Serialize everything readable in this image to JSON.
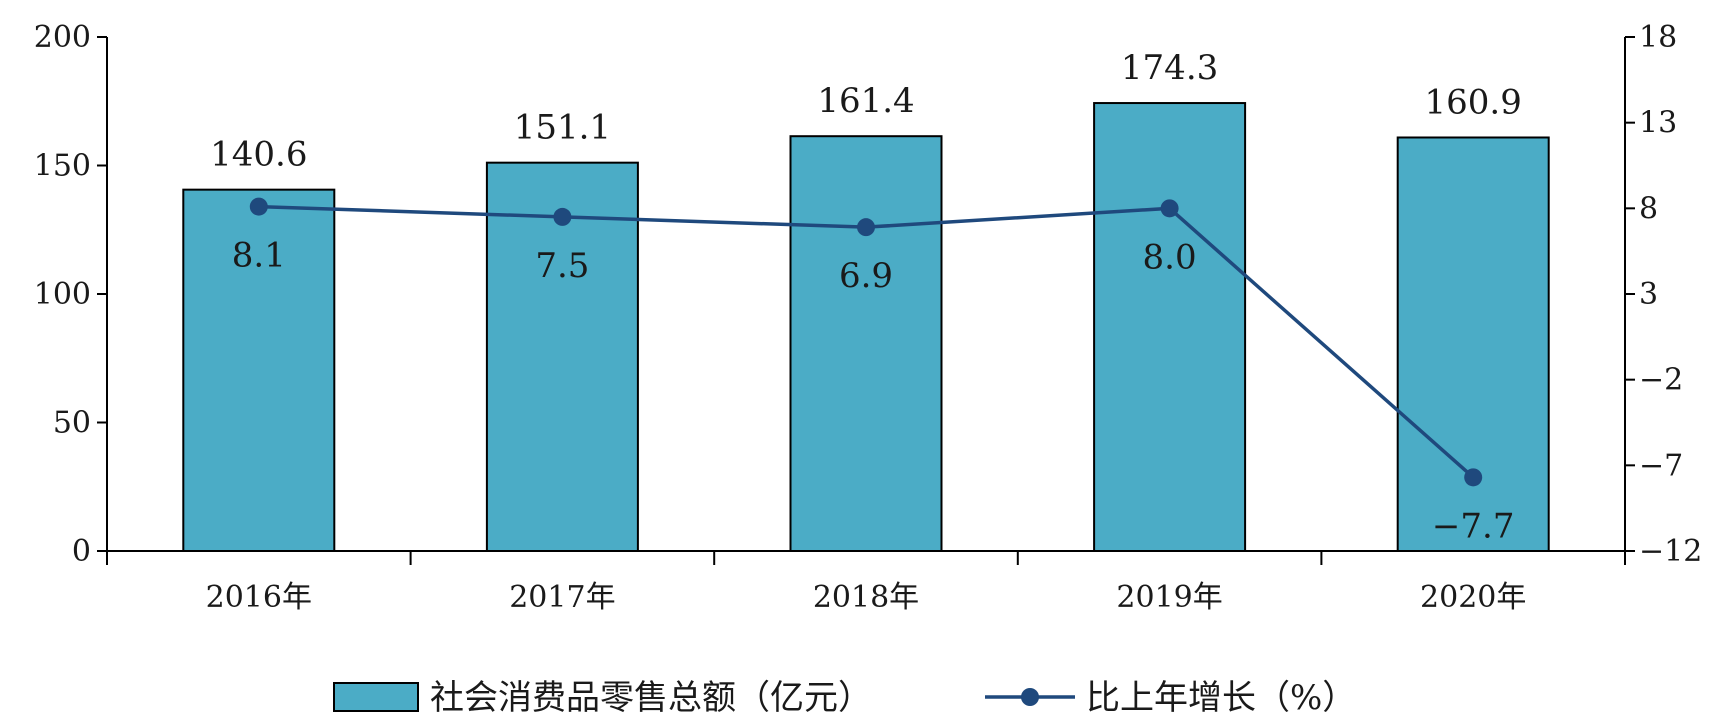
{
  "chart_data": {
    "type": "bar",
    "categories": [
      "2016年",
      "2017年",
      "2018年",
      "2019年",
      "2020年"
    ],
    "series": [
      {
        "name": "社会消费品零售总额（亿元）",
        "type": "bar",
        "axis": "left",
        "values": [
          140.6,
          151.1,
          161.4,
          174.3,
          160.9
        ],
        "labels": [
          "140.6",
          "151.1",
          "161.4",
          "174.3",
          "160.9"
        ],
        "color": "#4BACC6"
      },
      {
        "name": "比上年增长（%）",
        "type": "line",
        "axis": "right",
        "values": [
          8.1,
          7.5,
          6.9,
          8.0,
          -7.7
        ],
        "labels": [
          "8.1",
          "7.5",
          "6.9",
          "8.0",
          "-7.7"
        ],
        "color": "#1F497D"
      }
    ],
    "y_left": {
      "min": 0,
      "max": 200,
      "ticks": [
        "0",
        "50",
        "100",
        "150",
        "200"
      ]
    },
    "y_right": {
      "min": -12,
      "max": 18,
      "ticks": [
        "-12",
        "-7",
        "-2",
        "3",
        "8",
        "13",
        "18"
      ]
    },
    "grid": false,
    "legend_position": "bottom"
  }
}
